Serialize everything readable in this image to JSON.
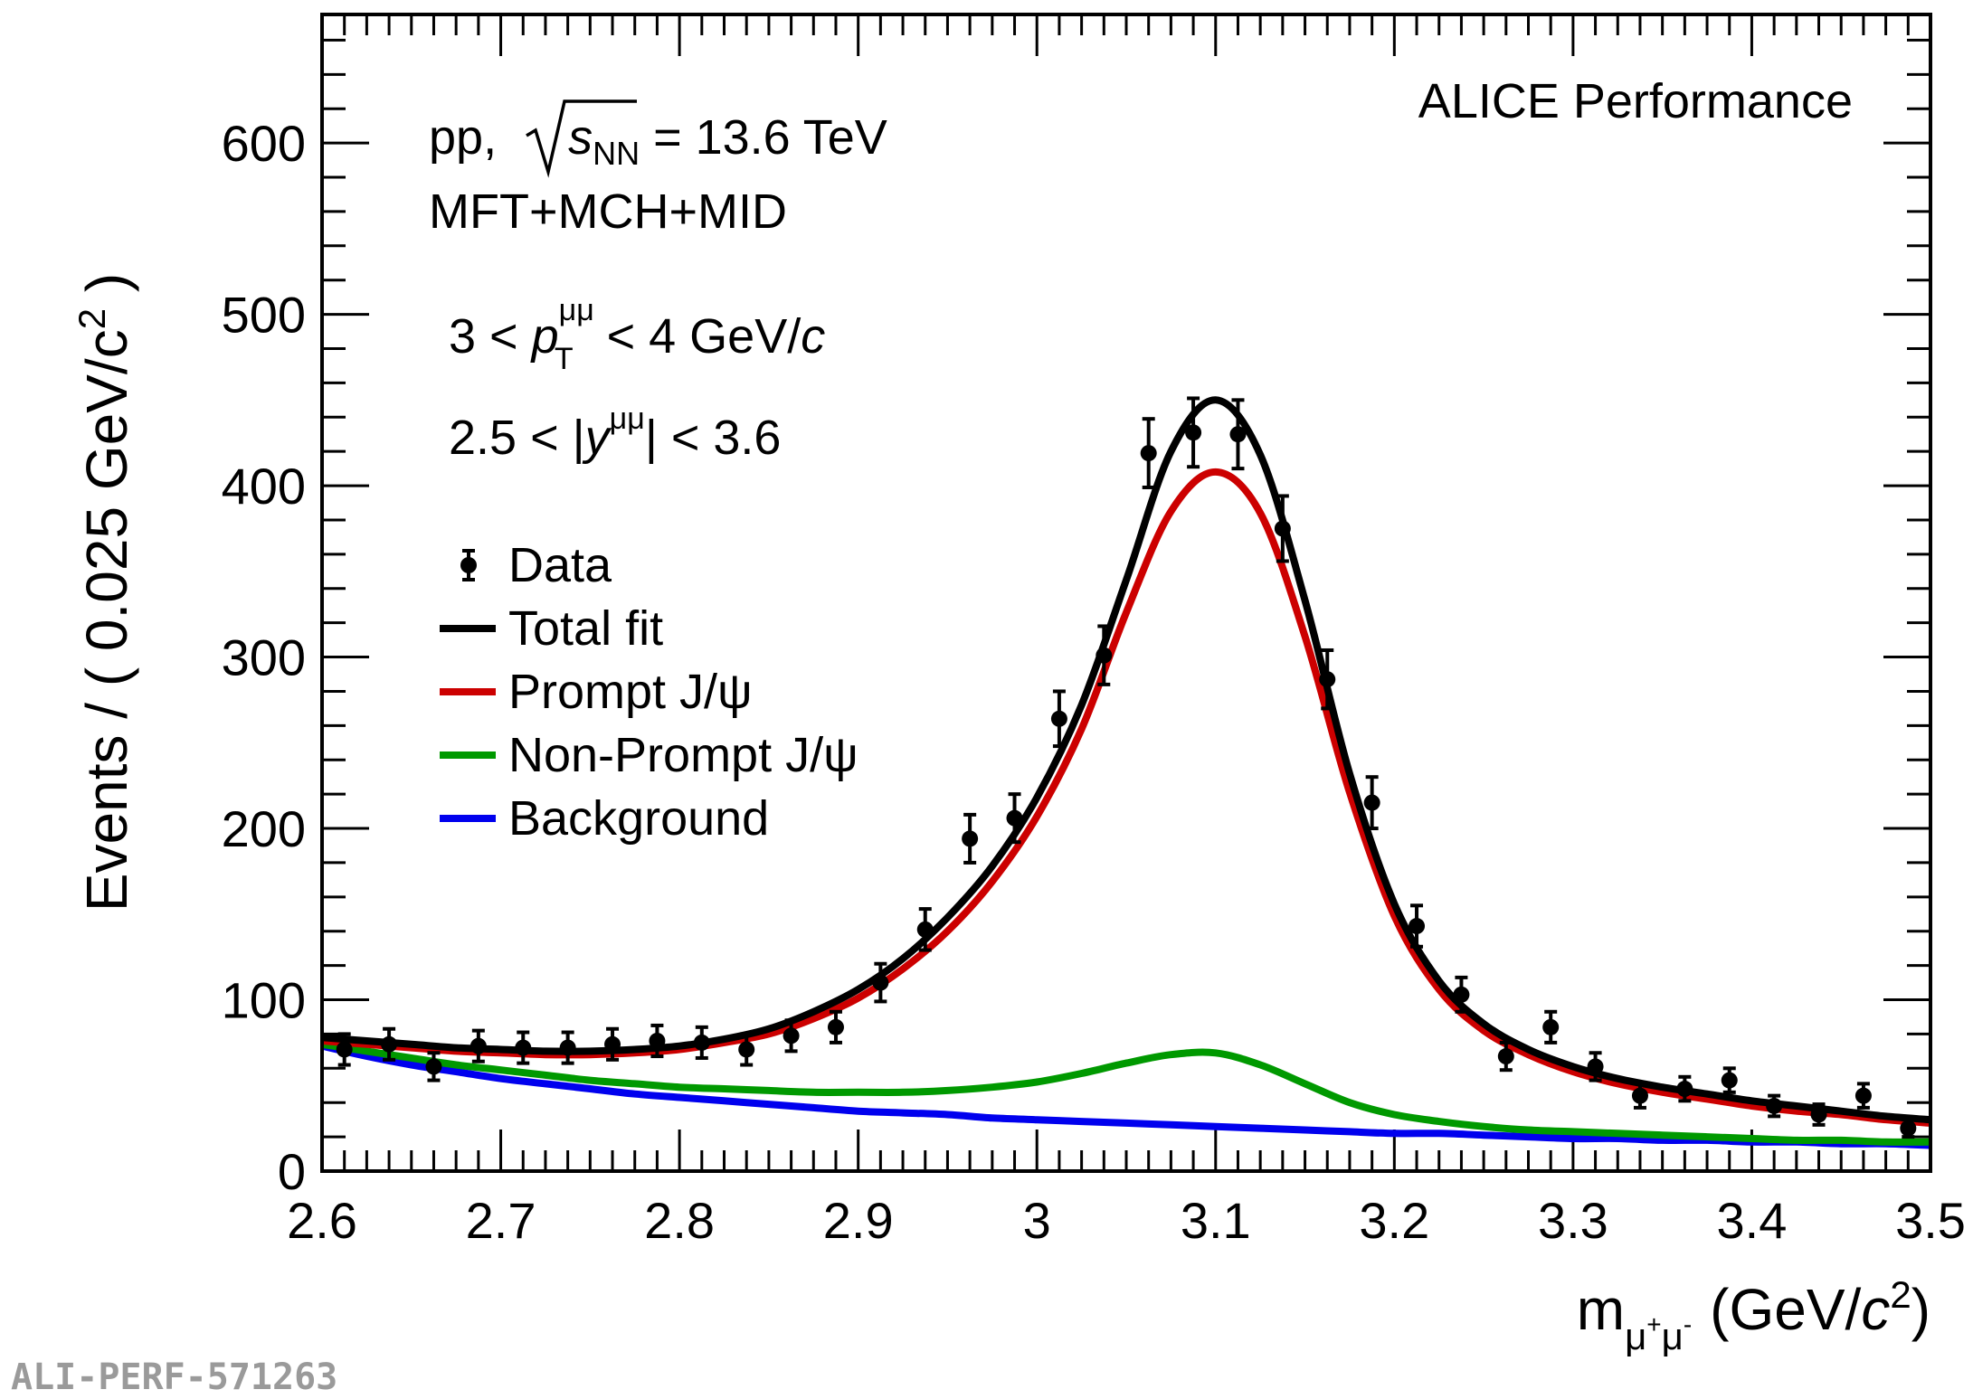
{
  "chart_data": {
    "type": "scatter",
    "title": "",
    "xlabel": {
      "main": "m",
      "sub_mu1": "μ",
      "sup_plus": "+",
      "sub_mu2": "μ",
      "sup_minus": "-",
      "units": "(GeV/",
      "c": "c",
      "two": "2",
      "close": ")"
    },
    "ylabel": {
      "main": "Events / ( 0.025 GeV/c",
      "sup": "2",
      "close": " )"
    },
    "xlim": [
      2.6,
      3.5
    ],
    "ylim": [
      0,
      675
    ],
    "x_ticks": [
      2.6,
      2.7,
      2.8,
      2.9,
      3.0,
      3.1,
      3.2,
      3.3,
      3.4,
      3.5
    ],
    "x_tick_labels": [
      "2.6",
      "2.7",
      "2.8",
      "2.9",
      "3",
      "3.1",
      "3.2",
      "3.3",
      "3.4",
      "3.5"
    ],
    "y_ticks": [
      0,
      100,
      200,
      300,
      400,
      500,
      600
    ],
    "y_tick_labels": [
      "0",
      "100",
      "200",
      "300",
      "400",
      "500",
      "600"
    ],
    "annotations": {
      "experiment": "ALICE Performance",
      "collision_prefix": "pp, ",
      "sqrt_s": "s",
      "sqrt_sub": "NN",
      "energy": " = 13.6 TeV",
      "detectors": "MFT+MCH+MID",
      "pt_lo": "3 < ",
      "pt_p": "p",
      "pt_sup": "μμ",
      "pt_sub": "T",
      "pt_hi": " < 4 GeV/",
      "pt_c": "c",
      "y_lo": "2.5 < |",
      "y_y": "y",
      "y_sup": "μμ",
      "y_hi": "| < 3.6"
    },
    "legend": [
      {
        "label": "Data",
        "type": "marker",
        "color": "#000000"
      },
      {
        "label": "Total fit",
        "type": "line",
        "color": "#000000"
      },
      {
        "label": "Prompt J/ψ",
        "type": "line",
        "color": "#cc0000"
      },
      {
        "label": "Non-Prompt J/ψ",
        "type": "line",
        "color": "#009900"
      },
      {
        "label": "Background",
        "type": "line",
        "color": "#0000ee"
      }
    ],
    "data_points": {
      "x": [
        2.6125,
        2.6375,
        2.6625,
        2.6875,
        2.7125,
        2.7375,
        2.7625,
        2.7875,
        2.8125,
        2.8375,
        2.8625,
        2.8875,
        2.9125,
        2.9375,
        2.9625,
        2.9875,
        3.0125,
        3.0375,
        3.0625,
        3.0875,
        3.1125,
        3.1375,
        3.1625,
        3.1875,
        3.2125,
        3.2375,
        3.2625,
        3.2875,
        3.3125,
        3.3375,
        3.3625,
        3.3875,
        3.4125,
        3.4375,
        3.4625,
        3.4875
      ],
      "y": [
        71,
        74,
        61,
        73,
        72,
        72,
        74,
        76,
        75,
        71,
        79,
        84,
        110,
        141,
        194,
        206,
        264,
        301,
        419,
        431,
        430,
        375,
        287,
        215,
        143,
        103,
        67,
        84,
        61,
        44,
        48,
        53,
        38,
        33,
        44,
        25
      ],
      "err": [
        9,
        9,
        8,
        9,
        9,
        9,
        9,
        9,
        9,
        9,
        9,
        9,
        11,
        12,
        14,
        14,
        16,
        17,
        20,
        20,
        20,
        19,
        17,
        15,
        12,
        10,
        8,
        9,
        8,
        7,
        7,
        7,
        6,
        6,
        7,
        5
      ]
    },
    "curves": {
      "x": [
        2.6,
        2.625,
        2.65,
        2.675,
        2.7,
        2.725,
        2.75,
        2.775,
        2.8,
        2.825,
        2.85,
        2.875,
        2.9,
        2.925,
        2.95,
        2.975,
        3.0,
        3.025,
        3.05,
        3.075,
        3.1,
        3.125,
        3.15,
        3.175,
        3.2,
        3.225,
        3.25,
        3.275,
        3.3,
        3.325,
        3.35,
        3.375,
        3.4,
        3.425,
        3.45,
        3.475,
        3.5
      ],
      "total": [
        78,
        76,
        74,
        72,
        71,
        70,
        70,
        71,
        73,
        77,
        83,
        93,
        106,
        124,
        148,
        178,
        218,
        272,
        345,
        420,
        450,
        418,
        333,
        232,
        156,
        111,
        86,
        71,
        61,
        54,
        49,
        45,
        41,
        38,
        35,
        32,
        30
      ],
      "prompt": [
        76,
        74,
        72,
        70,
        69,
        68,
        68,
        69,
        71,
        75,
        80,
        89,
        101,
        118,
        140,
        169,
        207,
        258,
        326,
        385,
        408,
        384,
        312,
        221,
        149,
        106,
        82,
        68,
        58,
        51,
        46,
        42,
        38,
        35,
        33,
        30,
        28
      ],
      "nonprompt": [
        74,
        70,
        66,
        62,
        59,
        56,
        53,
        51,
        49,
        48,
        47,
        46,
        46,
        46,
        47,
        49,
        52,
        57,
        63,
        68,
        69,
        62,
        51,
        40,
        33,
        29,
        26,
        24,
        23,
        22,
        21,
        20,
        19,
        18,
        18,
        17,
        17
      ],
      "background": [
        73,
        67,
        62,
        58,
        54,
        51,
        48,
        45,
        43,
        41,
        39,
        37,
        35,
        34,
        33,
        31,
        30,
        29,
        28,
        27,
        26,
        25,
        24,
        23,
        22,
        22,
        21,
        20,
        19,
        19,
        18,
        18,
        17,
        17,
        16,
        16,
        15
      ]
    },
    "colors": {
      "data": "#000000",
      "total": "#000000",
      "prompt": "#cc0000",
      "nonprompt": "#009900",
      "background": "#0000ee"
    }
  },
  "footer": {
    "id": "ALI-PERF-571263"
  }
}
